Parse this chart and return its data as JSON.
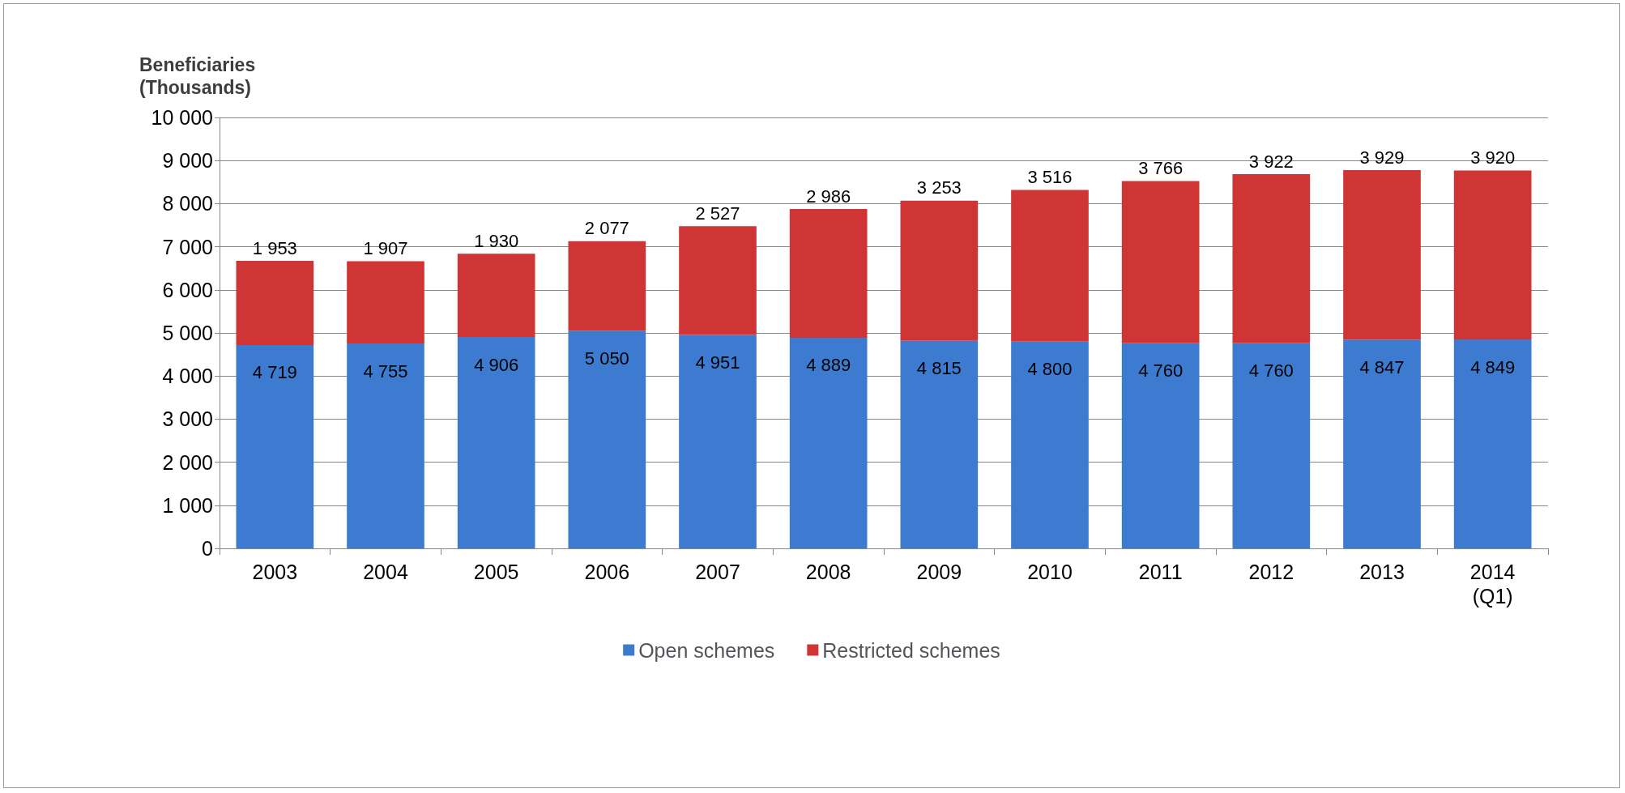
{
  "chart_data": {
    "type": "bar",
    "stacked": true,
    "ylabel": "Beneficiaries\n(Thousands)",
    "categories": [
      "2003",
      "2004",
      "2005",
      "2006",
      "2007",
      "2008",
      "2009",
      "2010",
      "2011",
      "2012",
      "2013",
      "2014\n(Q1)"
    ],
    "series": [
      {
        "name": "Open schemes",
        "color": "#3d7bd0",
        "values": [
          4719,
          4755,
          4906,
          5050,
          4951,
          4889,
          4815,
          4800,
          4760,
          4760,
          4847,
          4849
        ],
        "value_labels": [
          "4 719",
          "4 755",
          "4 906",
          "5 050",
          "4 951",
          "4 889",
          "4 815",
          "4 800",
          "4 760",
          "4 760",
          "4 847",
          "4 849"
        ]
      },
      {
        "name": "Restricted schemes",
        "color": "#cf3535",
        "values": [
          1953,
          1907,
          1930,
          2077,
          2527,
          2986,
          3253,
          3516,
          3766,
          3922,
          3929,
          3920
        ],
        "value_labels": [
          "1 953",
          "1 907",
          "1 930",
          "2 077",
          "2 527",
          "2 986",
          "3 253",
          "3 516",
          "3 766",
          "3 922",
          "3 929",
          "3 920"
        ]
      }
    ],
    "ylim": [
      0,
      10000
    ],
    "yticks": [
      0,
      {
        "value": 1000,
        "label": "1 000"
      },
      {
        "value": 2000,
        "label": "2 000"
      },
      {
        "value": 3000,
        "label": "3 000"
      },
      {
        "value": 4000,
        "label": "4 000"
      },
      {
        "value": 5000,
        "label": "5 000"
      },
      {
        "value": 6000,
        "label": "6 000"
      },
      {
        "value": 7000,
        "label": "7 000"
      },
      {
        "value": 8000,
        "label": "8 000"
      },
      {
        "value": 9000,
        "label": "9 000"
      },
      {
        "value": 10000,
        "label": "10 000"
      }
    ],
    "grid": "y",
    "legend": "bottom"
  }
}
